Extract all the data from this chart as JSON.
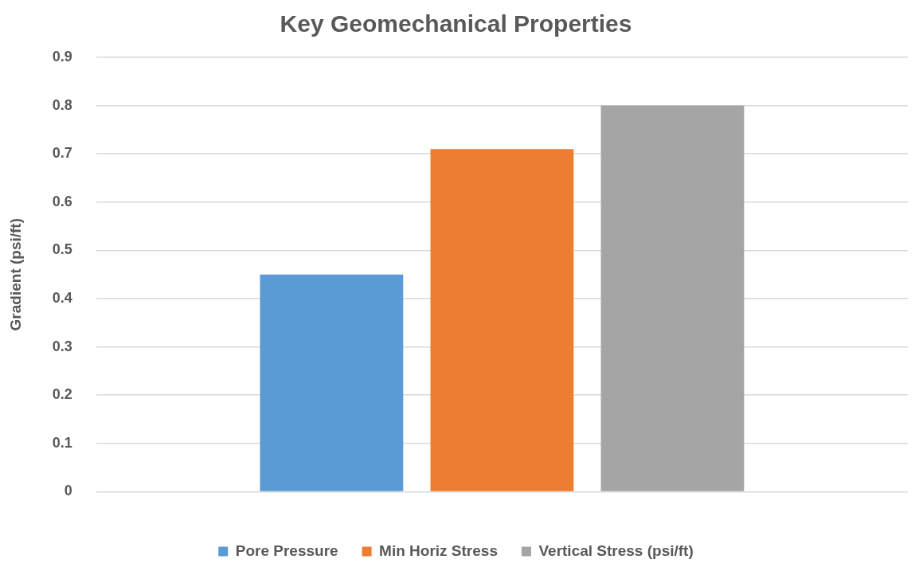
{
  "chart_data": {
    "type": "bar",
    "title": "Key Geomechanical Properties",
    "ylabel": "Gradient (psi/ft)",
    "categories": [
      null
    ],
    "series": [
      {
        "name": "Pore Pressure",
        "color": "#5b9bd5",
        "values": [
          0.45
        ]
      },
      {
        "name": "Min Horiz Stress",
        "color": "#ed7d31",
        "values": [
          0.71
        ]
      },
      {
        "name": "Vertical Stress (psi/ft)",
        "color": "#a5a5a5",
        "values": [
          0.8
        ]
      }
    ],
    "ylim": [
      0,
      0.9
    ],
    "yticks": [
      0,
      0.1,
      0.2,
      0.3,
      0.4,
      0.5,
      0.6,
      0.7,
      0.8,
      0.9
    ],
    "grid": "y",
    "legend": "bottom"
  }
}
